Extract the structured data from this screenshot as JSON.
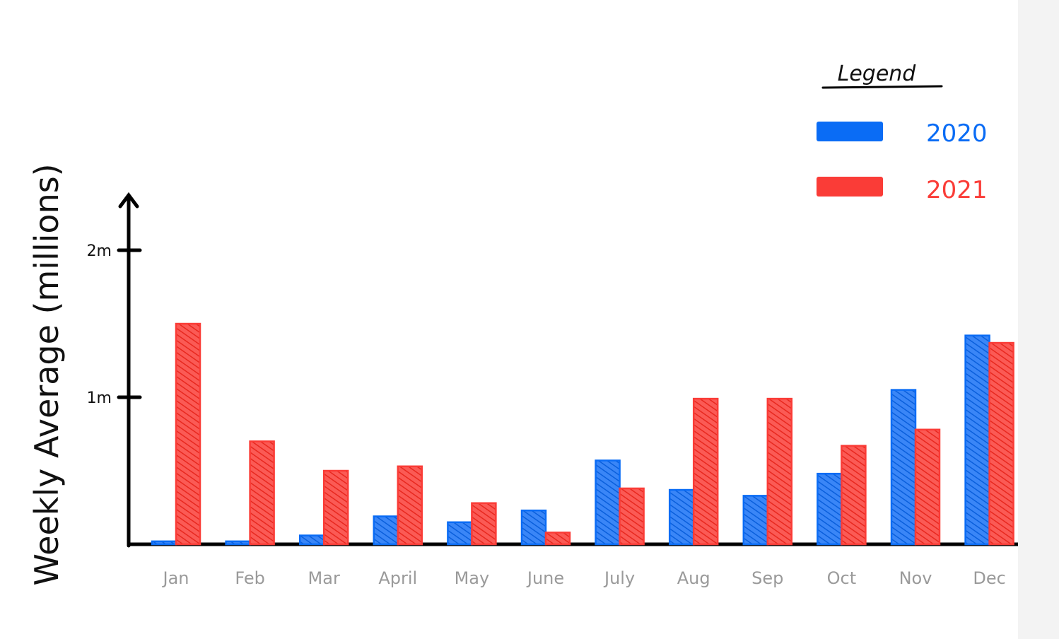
{
  "chart_data": {
    "type": "bar",
    "ylabel": "Weekly Average (millions)",
    "xlabel": "",
    "yticks": [
      {
        "value": 1,
        "label": "1m"
      },
      {
        "value": 2,
        "label": "2m"
      }
    ],
    "ylim": [
      0,
      2.3
    ],
    "categories": [
      "Jan",
      "Feb",
      "Mar",
      "April",
      "May",
      "June",
      "July",
      "Aug",
      "Sep",
      "Oct",
      "Nov",
      "Dec"
    ],
    "series": [
      {
        "name": "2020",
        "color": "#0a6cf5",
        "values": [
          0.02,
          0.02,
          0.06,
          0.19,
          0.15,
          0.23,
          0.57,
          0.37,
          0.33,
          0.48,
          1.05,
          1.42
        ]
      },
      {
        "name": "2021",
        "color": "#fa3c37",
        "values": [
          1.5,
          0.7,
          0.5,
          0.53,
          0.28,
          0.08,
          0.38,
          0.99,
          0.99,
          0.67,
          0.78,
          1.37
        ]
      }
    ],
    "legend": {
      "title": "Legend",
      "position": "top-right"
    },
    "grid": false
  }
}
